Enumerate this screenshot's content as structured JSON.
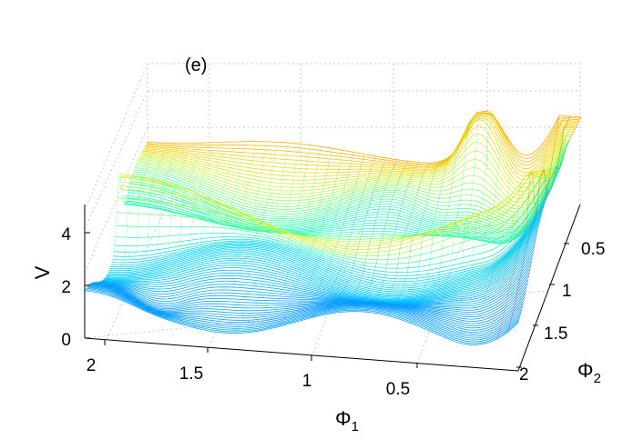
{
  "chart_data": {
    "type": "surface",
    "panel_label": "(e)",
    "xlabel": "Φ",
    "xlabel_sub": "1",
    "ylabel": "Φ",
    "ylabel_sub": "2",
    "zlabel": "V",
    "x_ticks": [
      "2",
      "1.5",
      "1",
      "0.5"
    ],
    "y_ticks": [
      "0.5",
      "1",
      "1.5",
      "2"
    ],
    "z_ticks": [
      "0",
      "2",
      "4"
    ],
    "xlim": [
      0,
      2.3
    ],
    "ylim": [
      0.2,
      2
    ],
    "zlim": [
      0,
      5
    ],
    "colormap": "jet",
    "colormap_stops": [
      "#0000c8",
      "#2040ff",
      "#00c8ff",
      "#40ffb0",
      "#c0ff40",
      "#ffd000",
      "#ff6000",
      "#e00000"
    ],
    "render_style": "contour lines stacked in 3D (waterfall contours)",
    "grid": true
  }
}
